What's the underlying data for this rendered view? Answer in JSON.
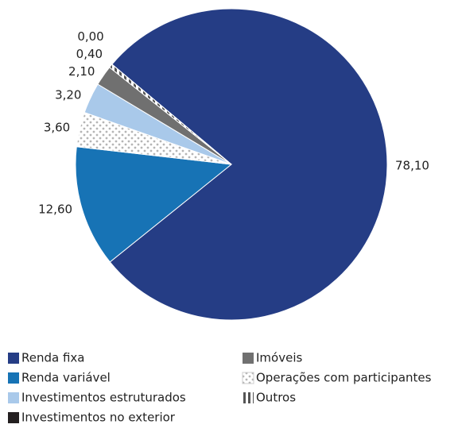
{
  "chart_data": {
    "type": "pie",
    "categories": [
      "Renda fixa",
      "Renda variável",
      "Investimentos estruturados",
      "Investimentos no exterior",
      "Imóveis",
      "Operações com participantes",
      "Outros"
    ],
    "values": [
      78.1,
      12.6,
      3.2,
      0.0,
      2.1,
      3.6,
      0.4
    ],
    "value_labels": [
      "78,10",
      "12,60",
      "3,20",
      "0,00",
      "2,10",
      "3,60",
      "0,40"
    ],
    "colors": [
      "#253d85",
      "#1773b5",
      "#a9c9ea",
      "#231f20",
      "#707070",
      "dots",
      "stripes"
    ]
  }
}
